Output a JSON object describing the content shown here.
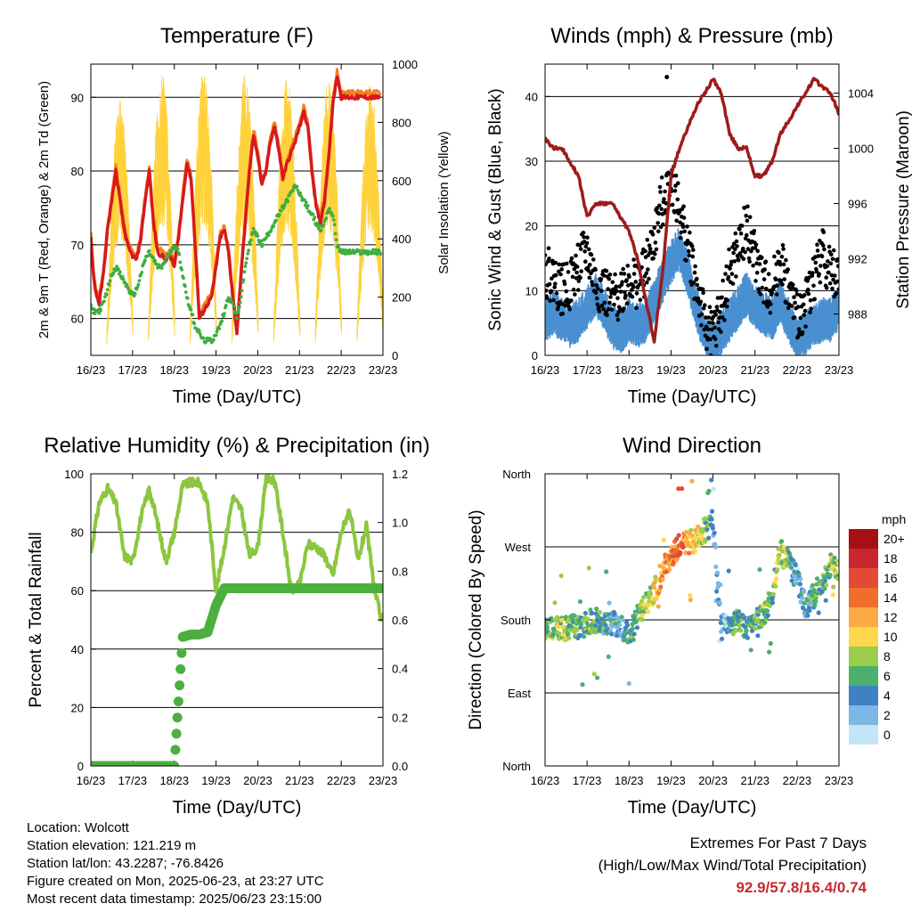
{
  "colors": {
    "temp2m": "#d7191c",
    "temp9m": "#f57f20",
    "dewpoint": "#3fae3f",
    "solar": "#ffd23c",
    "wind": "#4a90d0",
    "gust": "#000000",
    "pressure": "#9e1b1b",
    "rh": "#8cc63f",
    "precip": "#4caf3f"
  },
  "x_tick_labels": [
    "16/23",
    "17/23",
    "18/23",
    "19/23",
    "20/23",
    "21/23",
    "22/23",
    "23/23"
  ],
  "chart_data": [
    {
      "type": "line",
      "title": "Temperature (F)",
      "xlabel": "Time (Day/UTC)",
      "ylabel": "2m & 9m T (Red, Orange) & 2m Td (Green)",
      "ylabel_right": "Solar Insolation (Yellow)",
      "ylim": [
        55,
        94.5
      ],
      "ylim_right": [
        0,
        1000
      ],
      "yticks": [
        60,
        70,
        80,
        90
      ],
      "yticks_right": [
        0,
        200,
        400,
        600,
        800,
        1000
      ],
      "x": [
        0,
        0.05,
        0.1,
        0.2,
        0.3,
        0.4,
        0.5,
        0.6,
        0.7,
        0.8,
        0.9,
        1.0,
        1.1,
        1.2,
        1.3,
        1.4,
        1.5,
        1.6,
        1.7,
        1.8,
        1.9,
        2.0,
        2.1,
        2.2,
        2.3,
        2.4,
        2.5,
        2.6,
        2.7,
        2.8,
        2.9,
        3.0,
        3.1,
        3.2,
        3.3,
        3.4,
        3.5,
        3.6,
        3.7,
        3.8,
        3.9,
        4.0,
        4.1,
        4.2,
        4.3,
        4.4,
        4.5,
        4.6,
        4.7,
        4.8,
        4.9,
        5.0,
        5.1,
        5.2,
        5.3,
        5.4,
        5.5,
        5.6,
        5.7,
        5.8,
        5.9,
        6.0,
        6.1,
        6.2,
        6.3,
        6.4,
        6.5,
        6.6,
        6.7,
        6.8,
        6.9,
        7.0
      ],
      "series": [
        {
          "name": "2m T",
          "values": [
            71,
            67,
            64,
            62,
            66,
            72,
            76,
            80,
            76,
            72,
            69.5,
            68.5,
            68,
            71,
            76,
            80,
            73,
            69,
            68.5,
            68,
            68.5,
            67,
            71,
            76,
            81,
            79,
            70,
            60,
            61,
            62,
            63,
            67,
            71,
            72,
            69,
            63,
            58,
            66,
            73,
            80,
            85,
            82,
            78,
            80,
            84,
            86,
            83,
            79,
            81,
            82.5,
            84,
            86,
            88,
            86,
            80,
            75,
            73,
            76,
            82,
            89,
            93,
            90,
            90,
            90,
            90,
            90,
            90,
            90,
            90,
            90,
            90,
            90
          ]
        },
        {
          "name": "2m Td",
          "values": [
            61.5,
            61,
            61,
            61,
            62,
            64,
            66,
            67,
            66,
            65,
            64,
            63,
            64,
            66,
            68,
            69,
            68,
            67,
            67,
            68,
            69,
            70,
            69,
            66,
            63,
            61,
            59,
            58,
            57,
            57,
            57,
            58,
            59,
            61,
            63,
            62,
            60,
            63,
            67,
            70,
            72,
            71,
            70,
            71,
            72,
            73,
            74,
            75,
            76,
            77,
            78,
            77,
            76,
            75,
            74,
            73,
            72,
            73,
            75,
            74,
            70,
            69,
            69,
            69,
            69,
            69,
            69,
            69,
            69,
            69,
            69,
            69
          ]
        }
      ],
      "solar_peaks": [
        {
          "day": 0.7,
          "value": 880
        },
        {
          "day": 1.7,
          "value": 990
        },
        {
          "day": 2.7,
          "value": 980
        },
        {
          "day": 3.7,
          "value": 970
        },
        {
          "day": 4.7,
          "value": 960
        },
        {
          "day": 5.7,
          "value": 950
        },
        {
          "day": 6.7,
          "value": 940
        }
      ]
    },
    {
      "type": "line",
      "title": "Winds (mph) & Pressure (mb)",
      "xlabel": "Time (Day/UTC)",
      "ylabel": "Sonic Wind & Gust (Blue, Black)",
      "ylabel_right": "Station Pressure (Maroon)",
      "ylim": [
        0,
        45
      ],
      "ylim_right": [
        985,
        1006.1
      ],
      "yticks": [
        0,
        10,
        20,
        30,
        40
      ],
      "yticks_right": [
        988,
        992,
        996,
        1000,
        1004
      ],
      "x": [
        0,
        0.2,
        0.4,
        0.6,
        0.8,
        1.0,
        1.2,
        1.4,
        1.6,
        1.8,
        2.0,
        2.2,
        2.4,
        2.6,
        2.8,
        3.0,
        3.2,
        3.4,
        3.6,
        3.8,
        4.0,
        4.2,
        4.4,
        4.6,
        4.8,
        5.0,
        5.2,
        5.4,
        5.6,
        5.8,
        6.0,
        6.2,
        6.4,
        6.6,
        6.8,
        7.0
      ],
      "series": [
        {
          "name": "Pressure",
          "values": [
            1000.7,
            1000,
            1000,
            999,
            998,
            995,
            996,
            996,
            996,
            995,
            994,
            992,
            989,
            986,
            991,
            998,
            1000,
            1001.5,
            1003,
            1004,
            1005,
            1004,
            1001,
            1000,
            1000,
            998,
            998,
            999,
            1001,
            1002,
            1003,
            1004,
            1005,
            1004.5,
            1004,
            1002.5
          ]
        },
        {
          "name": "Wind",
          "values": [
            6,
            7,
            6,
            5,
            6,
            8,
            10,
            8,
            5,
            4,
            6,
            5,
            6,
            9,
            12,
            15,
            17,
            13,
            8,
            4,
            2,
            4,
            6,
            8,
            10,
            8,
            7,
            6,
            9,
            6,
            3,
            4,
            5,
            6,
            6,
            8
          ]
        },
        {
          "name": "Gust",
          "values": [
            13,
            12,
            10,
            11,
            14,
            16,
            11,
            10,
            8,
            10,
            12,
            11,
            13,
            18,
            24,
            28,
            22,
            17,
            11,
            5,
            3,
            7,
            13,
            16,
            20,
            15,
            11,
            10,
            15,
            10,
            6,
            8,
            12,
            16,
            13,
            12
          ]
        }
      ],
      "outlier_gust": {
        "day": 2.9,
        "value": 43
      }
    },
    {
      "type": "line",
      "title": "Relative Humidity (%) & Precipitation (in)",
      "xlabel": "Time (Day/UTC)",
      "ylabel": "Percent & Total Rainfall",
      "ylim": [
        0,
        100
      ],
      "ylim_right": [
        0,
        1.2
      ],
      "yticks": [
        0,
        20,
        40,
        60,
        80,
        100
      ],
      "yticks_right": [
        0.0,
        0.2,
        0.4,
        0.6,
        0.8,
        1.0,
        1.2
      ],
      "x": [
        0,
        0.2,
        0.4,
        0.6,
        0.8,
        1.0,
        1.2,
        1.4,
        1.6,
        1.8,
        2.0,
        2.2,
        2.4,
        2.6,
        2.8,
        3.0,
        3.2,
        3.4,
        3.6,
        3.8,
        4.0,
        4.2,
        4.4,
        4.6,
        4.8,
        5.0,
        5.2,
        5.4,
        5.6,
        5.8,
        6.0,
        6.2,
        6.4,
        6.6,
        6.8,
        7.0
      ],
      "series": [
        {
          "name": "RH",
          "values": [
            73,
            90,
            95,
            90,
            72,
            70,
            85,
            95,
            83,
            70,
            80,
            96,
            97,
            97,
            90,
            60,
            75,
            92,
            88,
            72,
            75,
            98,
            98,
            80,
            60,
            62,
            76,
            75,
            72,
            65,
            80,
            88,
            70,
            82,
            60,
            48
          ]
        },
        {
          "name": "Precip",
          "values": [
            0,
            0,
            0,
            0,
            0,
            0,
            0,
            0,
            0,
            0,
            0,
            0.53,
            0.54,
            0.54,
            0.55,
            0.66,
            0.73,
            0.73,
            0.73,
            0.73,
            0.73,
            0.73,
            0.73,
            0.73,
            0.73,
            0.73,
            0.73,
            0.73,
            0.73,
            0.73,
            0.73,
            0.73,
            0.73,
            0.73,
            0.73,
            0.73
          ]
        }
      ]
    },
    {
      "type": "scatter",
      "title": "Wind Direction",
      "xlabel": "Time (Day/UTC)",
      "ylabel": "Direction (Colored By Speed)",
      "ylim": [
        0,
        360
      ],
      "ytick_labels": [
        "North",
        "East",
        "South",
        "West",
        "North"
      ],
      "x": [
        0,
        0.2,
        0.4,
        0.6,
        0.8,
        1.0,
        1.2,
        1.4,
        1.6,
        1.8,
        2.0,
        2.2,
        2.4,
        2.6,
        2.8,
        3.0,
        3.2,
        3.4,
        3.6,
        3.8,
        4.0,
        4.2,
        4.4,
        4.6,
        4.8,
        5.0,
        5.2,
        5.4,
        5.6,
        5.8,
        6.0,
        6.2,
        6.4,
        6.6,
        6.8,
        7.0
      ],
      "series": [
        {
          "name": "Direction",
          "values": [
            170,
            168,
            168,
            172,
            170,
            176,
            180,
            178,
            176,
            170,
            160,
            185,
            200,
            215,
            240,
            260,
            272,
            275,
            280,
            290,
            300,
            170,
            175,
            180,
            165,
            180,
            185,
            210,
            265,
            250,
            230,
            195,
            210,
            225,
            250,
            245
          ]
        },
        {
          "name": "Speed",
          "values": [
            6,
            7,
            8,
            7,
            6,
            7,
            6,
            5,
            4,
            3,
            4,
            6,
            8,
            10,
            12,
            14,
            15,
            12,
            10,
            8,
            3,
            2,
            4,
            6,
            5,
            6,
            7,
            6,
            9,
            6,
            3,
            4,
            5,
            6,
            7,
            8
          ]
        }
      ],
      "colorbar": {
        "title": "mph",
        "labels": [
          "20+",
          "18",
          "16",
          "14",
          "12",
          "10",
          "8",
          "6",
          "4",
          "2",
          "0"
        ],
        "colors": [
          "#a50f15",
          "#c8282d",
          "#e34a33",
          "#f16d2a",
          "#fcaa44",
          "#fdd84d",
          "#9acd4a",
          "#4caf6e",
          "#3f82c4",
          "#7cb7e6",
          "#c4e4f8"
        ]
      }
    }
  ],
  "info": {
    "location": "Location: Wolcott",
    "elevation": "Station elevation: 121.219 m",
    "latlon": "Station lat/lon: 43.2287; -76.8426",
    "created": "Figure created on Mon, 2025-06-23, at 23:27 UTC",
    "recent": "Most recent data timestamp: 2025/06/23 23:15:00"
  },
  "extremes": {
    "line1": "Extremes For Past 7 Days",
    "line2": "(High/Low/Max Wind/Total Precipitation)",
    "values": "92.9/57.8/16.4/0.74"
  }
}
